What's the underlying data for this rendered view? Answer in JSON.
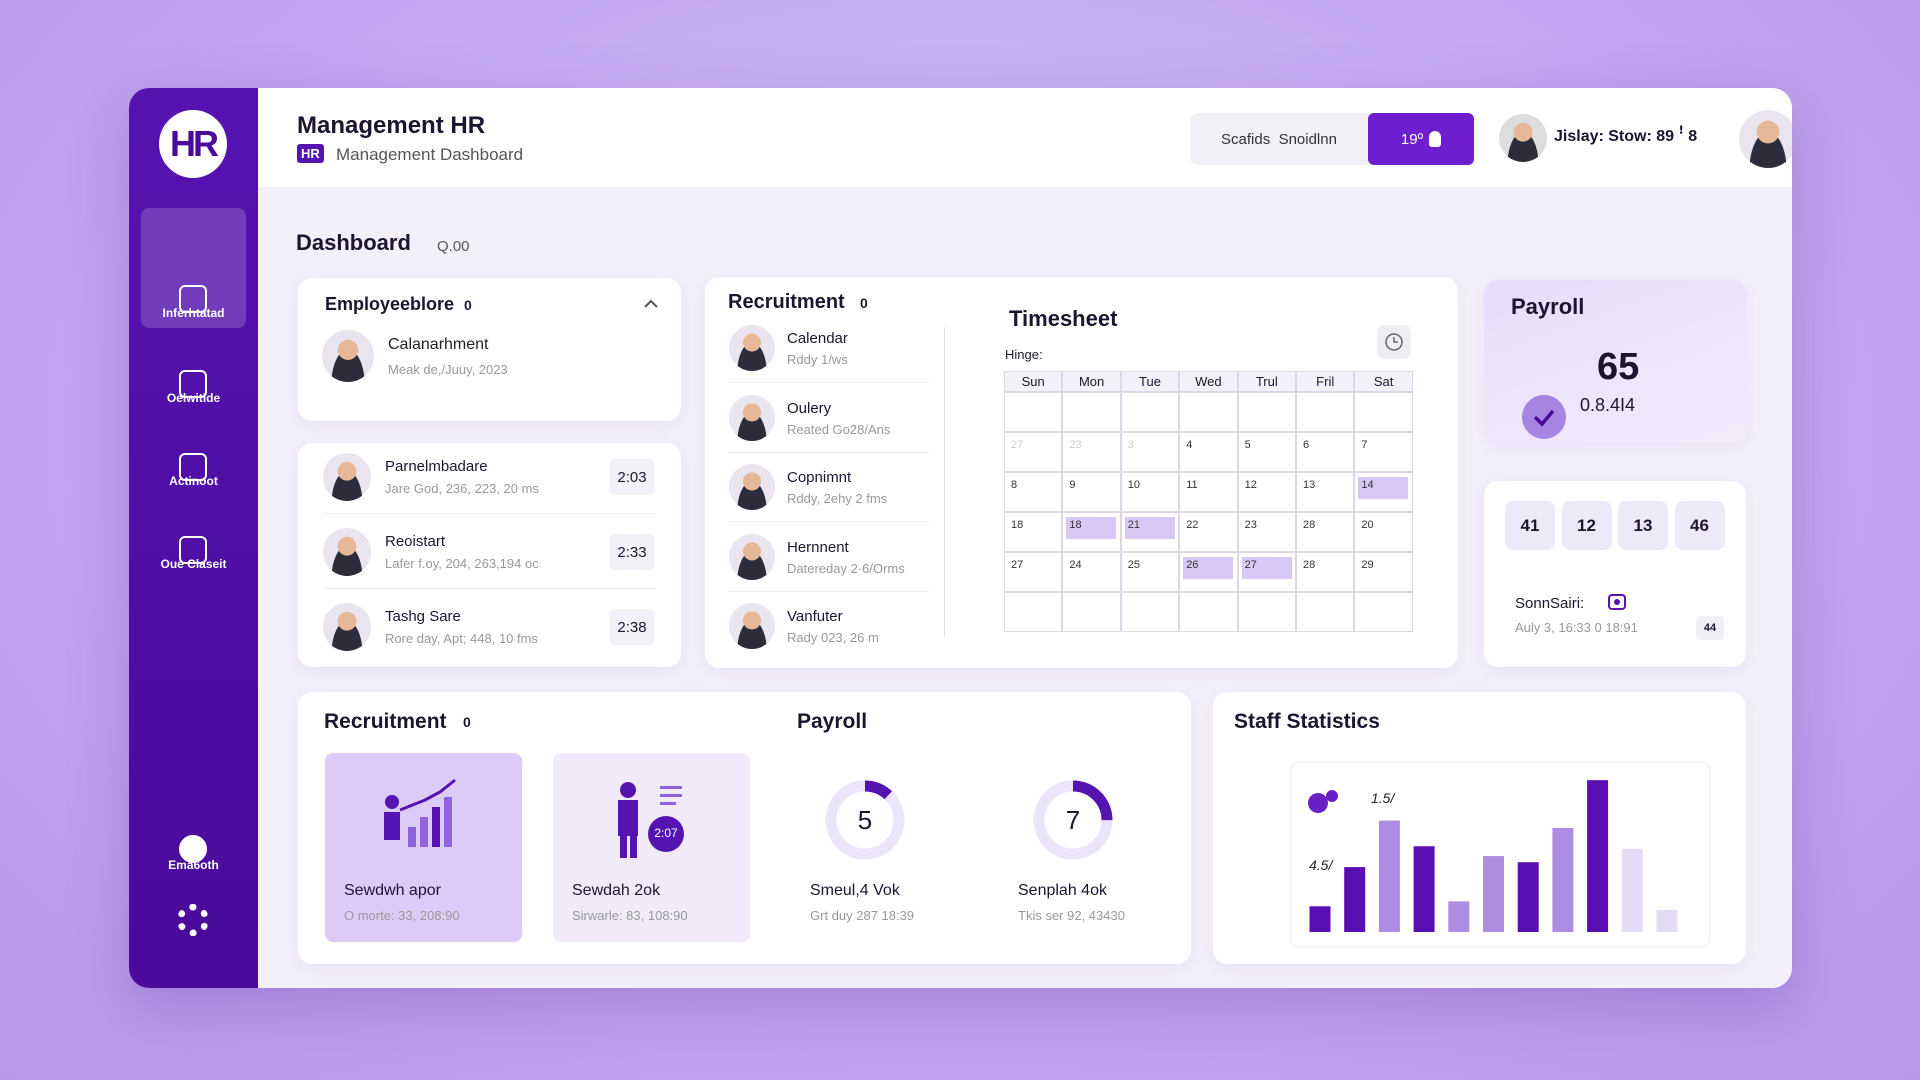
{
  "sidebar": {
    "logo": "HR",
    "items": [
      "Inferhtatad",
      "Oelwitide",
      "Actinoot",
      "Oue Claseit",
      "Ema6oth"
    ]
  },
  "header": {
    "title": "Management HR",
    "badge": "HR",
    "subtitle": "Management Dashboard",
    "search": "Scafids  Snoidlnn",
    "button": "19º",
    "user_info": "Jislay: Stow: 89 ꜝ 8"
  },
  "dashboard": {
    "title": "Dashboard",
    "suffix": "Q.00"
  },
  "employee_panel": {
    "title": "Employeeblore",
    "count": "0",
    "featured": {
      "name": "Calanarhment",
      "detail": "Meak de,/Juuy, 2023"
    }
  },
  "employee_list": [
    {
      "name": "Parnelmbadare",
      "detail": "Jare God, 236, 223, 20 ms",
      "time": "2:03"
    },
    {
      "name": "Reoistart",
      "detail": "Lafer f.oy, 204, 263,194 oc",
      "time": "2:33"
    },
    {
      "name": "Tashg Sare",
      "detail": "Rore day, Apt; 448, 10 fms",
      "time": "2:38"
    }
  ],
  "recruitment_list": {
    "title": "Recruitment",
    "count": "0",
    "items": [
      {
        "name": "Calendar",
        "detail": "Rddy 1/ws"
      },
      {
        "name": "Oulery",
        "detail": "Reated Go28/Ans"
      },
      {
        "name": "Copnimnt",
        "detail": "Rddy, 2ehy 2 fms"
      },
      {
        "name": "Hernnent",
        "detail": "Datereday 2·6/Orms"
      },
      {
        "name": "Vanfuter",
        "detail": "Rady 023, 26 m"
      }
    ]
  },
  "timesheet": {
    "title": "Timesheet",
    "label": "Hinge:",
    "days": [
      "Sun",
      "Mon",
      "Tue",
      "Wed",
      "Trul",
      "Fril",
      "Sat"
    ],
    "weeks": [
      [
        "27",
        "23",
        "3",
        "4",
        "5",
        "6",
        "7"
      ],
      [
        "8",
        "9",
        "10",
        "11",
        "12",
        "13",
        "14"
      ],
      [
        "18",
        "18",
        "21",
        "22",
        "23",
        "28",
        "20"
      ],
      [
        "27",
        "24",
        "25",
        "26",
        "27",
        "28",
        "29"
      ]
    ]
  },
  "payroll_card": {
    "title": "Payroll",
    "value": "65",
    "sub": "0.8.4I4"
  },
  "tiles": [
    "41",
    "12",
    "13",
    "46"
  ],
  "schedule": {
    "label": "SonnSairi:",
    "detail": "Auly 3, 16:33 0 18:91",
    "badge": "44"
  },
  "bottom_recruitment": {
    "title": "Recruitment",
    "count": "0",
    "cards": [
      {
        "title": "Sewdwh apor",
        "detail": "O morte: 33, 208:90"
      },
      {
        "title": "Sewdah 2ok",
        "detail": "Sirwarle: 83, 108:90",
        "badge": "2:07"
      }
    ]
  },
  "bottom_payroll": {
    "title": "Payroll",
    "donuts": [
      {
        "value": "5",
        "title": "Smeul,4 Vok",
        "detail": "Grt duy 287 18:39"
      },
      {
        "value": "7",
        "title": "Senplah 4ok",
        "detail": "Tkis ser 92, 43430"
      }
    ]
  },
  "staff_statistics": {
    "type": "bar",
    "title": "Staff Statistics",
    "labels": [
      "1.5/",
      "4.5/"
    ],
    "values": [
      21,
      53,
      91,
      70,
      25,
      62,
      57,
      85,
      124,
      68,
      18
    ],
    "colors": [
      "#5a0fb4",
      "#5a0fb4",
      "#ab8ee2",
      "#5a0fb4",
      "#ab8ee2",
      "#ab8ee2",
      "#5a0fb4",
      "#ab8ee2",
      "#5a0fb4",
      "#e4dcf5",
      "#e4dcf5"
    ]
  }
}
